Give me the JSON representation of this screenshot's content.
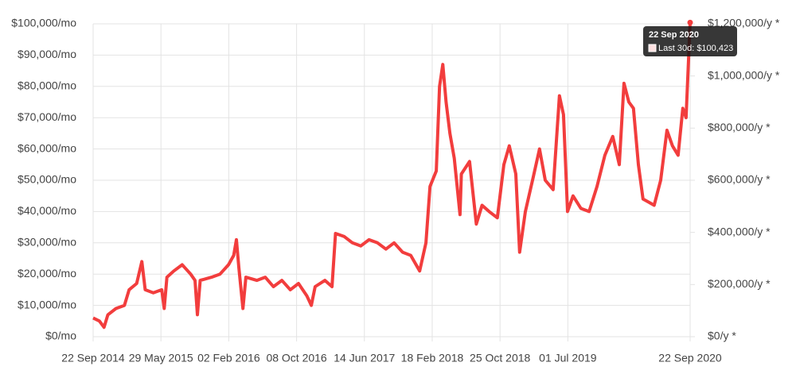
{
  "chart_data": {
    "type": "line",
    "x": [
      "2014-09-22",
      "2014-10-15",
      "2014-11-01",
      "2014-11-15",
      "2014-12-15",
      "2015-01-15",
      "2015-02-01",
      "2015-03-01",
      "2015-03-20",
      "2015-04-01",
      "2015-05-01",
      "2015-06-01",
      "2015-06-10",
      "2015-06-20",
      "2015-07-15",
      "2015-08-15",
      "2015-09-15",
      "2015-10-01",
      "2015-10-10",
      "2015-10-20",
      "2015-12-01",
      "2016-01-01",
      "2016-02-01",
      "2016-02-20",
      "2016-03-01",
      "2016-03-10",
      "2016-03-25",
      "2016-04-05",
      "2016-05-15",
      "2016-06-15",
      "2016-07-15",
      "2016-08-15",
      "2016-09-15",
      "2016-10-15",
      "2016-11-15",
      "2016-12-01",
      "2016-12-15",
      "2017-01-20",
      "2017-02-15",
      "2017-02-28",
      "2017-04-01",
      "2017-05-01",
      "2017-06-01",
      "2017-07-01",
      "2017-08-01",
      "2017-09-01",
      "2017-10-01",
      "2017-11-01",
      "2017-12-01",
      "2018-01-03",
      "2018-01-26",
      "2018-02-10",
      "2018-03-05",
      "2018-03-17",
      "2018-03-29",
      "2018-04-10",
      "2018-04-24",
      "2018-05-10",
      "2018-05-31",
      "2018-06-05",
      "2018-07-05",
      "2018-07-30",
      "2018-08-20",
      "2018-09-15",
      "2018-10-15",
      "2018-11-08",
      "2018-11-28",
      "2018-12-22",
      "2019-01-05",
      "2019-01-26",
      "2019-02-24",
      "2019-03-19",
      "2019-04-09",
      "2019-05-08",
      "2019-05-31",
      "2019-06-15",
      "2019-06-30",
      "2019-07-20",
      "2019-08-18",
      "2019-09-17",
      "2019-10-16",
      "2019-11-14",
      "2019-12-13",
      "2020-01-06",
      "2020-01-23",
      "2020-02-10",
      "2020-02-27",
      "2020-03-16",
      "2020-04-02",
      "2020-04-23",
      "2020-05-13",
      "2020-06-06",
      "2020-06-29",
      "2020-07-19",
      "2020-08-09",
      "2020-08-26",
      "2020-09-07",
      "2020-09-22"
    ],
    "values": [
      6000,
      5000,
      3000,
      7000,
      9000,
      10000,
      15000,
      17000,
      24000,
      15000,
      14000,
      15000,
      9000,
      19000,
      21000,
      23000,
      20000,
      18000,
      7000,
      18000,
      19000,
      20000,
      23000,
      26000,
      31000,
      22000,
      9000,
      19000,
      18000,
      19000,
      16000,
      18000,
      15000,
      17000,
      13000,
      10000,
      16000,
      18000,
      16000,
      33000,
      32000,
      30000,
      29000,
      31000,
      30000,
      28000,
      30000,
      27000,
      26000,
      21000,
      30000,
      48000,
      53000,
      80000,
      87000,
      75000,
      65000,
      57000,
      39000,
      52000,
      56000,
      36000,
      42000,
      40000,
      38000,
      55000,
      61000,
      52000,
      27000,
      40000,
      51000,
      60000,
      50000,
      47000,
      77000,
      71000,
      40000,
      45000,
      41000,
      40000,
      48000,
      58000,
      64000,
      55000,
      81000,
      75000,
      73000,
      55000,
      44000,
      43000,
      42000,
      50000,
      66000,
      61000,
      58000,
      73000,
      70000,
      100423
    ],
    "color": "#f23d3d",
    "xlim": [
      "2014-09-22",
      "2020-09-22"
    ],
    "xticks": [
      {
        "value": "2014-09-22",
        "label": "22 Sep 2014"
      },
      {
        "value": "2015-05-29",
        "label": "29 May 2015"
      },
      {
        "value": "2016-02-02",
        "label": "02 Feb 2016"
      },
      {
        "value": "2016-10-08",
        "label": "08 Oct 2016"
      },
      {
        "value": "2017-06-14",
        "label": "14 Jun 2017"
      },
      {
        "value": "2018-02-18",
        "label": "18 Feb 2018"
      },
      {
        "value": "2018-10-25",
        "label": "25 Oct 2018"
      },
      {
        "value": "2019-07-01",
        "label": "01 Jul 2019"
      },
      {
        "value": "2020-09-22",
        "label": "22 Sep 2020"
      }
    ],
    "ylim": [
      0,
      100000
    ],
    "yticks": [
      {
        "value": 0,
        "label": "$0/mo"
      },
      {
        "value": 10000,
        "label": "$10,000/mo"
      },
      {
        "value": 20000,
        "label": "$20,000/mo"
      },
      {
        "value": 30000,
        "label": "$30,000/mo"
      },
      {
        "value": 40000,
        "label": "$40,000/mo"
      },
      {
        "value": 50000,
        "label": "$50,000/mo"
      },
      {
        "value": 60000,
        "label": "$60,000/mo"
      },
      {
        "value": 70000,
        "label": "$70,000/mo"
      },
      {
        "value": 80000,
        "label": "$80,000/mo"
      },
      {
        "value": 90000,
        "label": "$90,000/mo"
      },
      {
        "value": 100000,
        "label": "$100,000/mo"
      }
    ],
    "y2lim": [
      0,
      1200000
    ],
    "y2ticks": [
      {
        "value": 0,
        "label": "$0/y *"
      },
      {
        "value": 200000,
        "label": "$200,000/y *"
      },
      {
        "value": 400000,
        "label": "$400,000/y *"
      },
      {
        "value": 600000,
        "label": "$600,000/y *"
      },
      {
        "value": 800000,
        "label": "$800,000/y *"
      },
      {
        "value": 1000000,
        "label": "$1,000,000/y *"
      },
      {
        "value": 1200000,
        "label": "$1,200,000/y *"
      }
    ],
    "grid": true,
    "tooltip": {
      "title": "22 Sep 2020",
      "text": "Last 30d: $100,423"
    }
  }
}
